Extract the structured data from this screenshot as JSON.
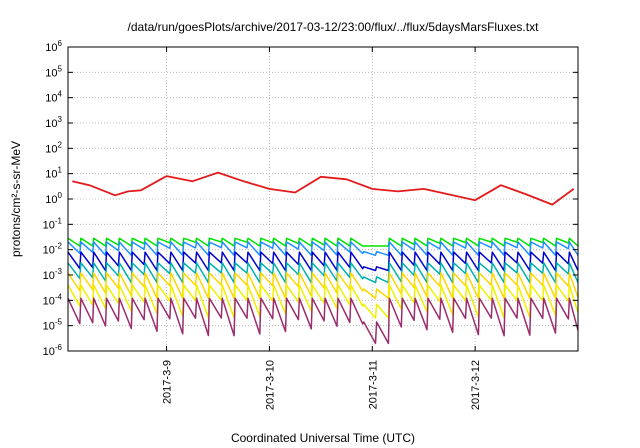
{
  "chart_data": {
    "type": "line",
    "title": "/data/run/goesPlots/archive/2017-03-12/23:00/flux/../flux/5daysMarsFluxes.txt",
    "xlabel": "Coordinated Universal Time (UTC)",
    "ylabel": "protons/cm²-s-sr-MeV",
    "yscale": "log",
    "ylim": [
      1e-06,
      1000000.0
    ],
    "y_ticks": [
      {
        "value": 1e-06,
        "base": "10",
        "exp": "-6"
      },
      {
        "value": 1e-05,
        "base": "10",
        "exp": "-5"
      },
      {
        "value": 0.0001,
        "base": "10",
        "exp": "-4"
      },
      {
        "value": 0.001,
        "base": "10",
        "exp": "-3"
      },
      {
        "value": 0.01,
        "base": "10",
        "exp": "-2"
      },
      {
        "value": 0.1,
        "base": "10",
        "exp": "-1"
      },
      {
        "value": 1,
        "base": "10",
        "exp": "0"
      },
      {
        "value": 10,
        "base": "10",
        "exp": "1"
      },
      {
        "value": 100,
        "base": "10",
        "exp": "2"
      },
      {
        "value": 1000,
        "base": "10",
        "exp": "3"
      },
      {
        "value": 10000,
        "base": "10",
        "exp": "4"
      },
      {
        "value": 100000,
        "base": "10",
        "exp": "5"
      },
      {
        "value": 1000000,
        "base": "10",
        "exp": "6"
      }
    ],
    "x_ticks": [
      "2017-3-9",
      "2017-3-10",
      "2017-3-11",
      "2017-3-12"
    ],
    "grid": true,
    "series": [
      {
        "color": "#e31a1c",
        "x": [
          "2017-03-08T02:00",
          "2017-03-08T06:00",
          "2017-03-08T12:00",
          "2017-03-08T15:00",
          "2017-03-08T18:00",
          "2017-03-09T00:00",
          "2017-03-09T06:00",
          "2017-03-09T12:00",
          "2017-03-09T18:00",
          "2017-03-10T00:00",
          "2017-03-10T06:00",
          "2017-03-10T12:00",
          "2017-03-10T18:00",
          "2017-03-11T00:00",
          "2017-03-11T06:00",
          "2017-03-11T12:00",
          "2017-03-11T18:00",
          "2017-03-12T00:00",
          "2017-03-12T06:00",
          "2017-03-12T12:00",
          "2017-03-12T18:00",
          "2017-03-12T23:00"
        ],
        "y": [
          5,
          3.5,
          1.4,
          2.0,
          2.2,
          8,
          5,
          11,
          5,
          2.5,
          1.8,
          7.5,
          6,
          2.5,
          2,
          2.5,
          1.5,
          0.9,
          3.5,
          1.5,
          0.6,
          2.5
        ]
      },
      {
        "color": "#00e000",
        "base": 0.02,
        "spike": 0.028,
        "drop": 0.014
      },
      {
        "color": "#1e90ff",
        "base": 0.012,
        "spike": 0.02,
        "drop": 0.006
      },
      {
        "color": "#0000cd",
        "base": 0.003,
        "spike": 0.008,
        "drop": 0.0015
      },
      {
        "color": "#00b0b0",
        "base": 0.0012,
        "spike": 0.003,
        "drop": 0.0005
      },
      {
        "color": "#ffd700",
        "base": 0.0004,
        "spike": 0.0012,
        "drop": 0.00012
      },
      {
        "color": "#f0f000",
        "base": 0.0001,
        "spike": 0.0004,
        "drop": 2e-05
      },
      {
        "color": "#9b2d6e",
        "base": 2e-05,
        "spike": 0.00012,
        "drop": 2e-06
      }
    ]
  }
}
